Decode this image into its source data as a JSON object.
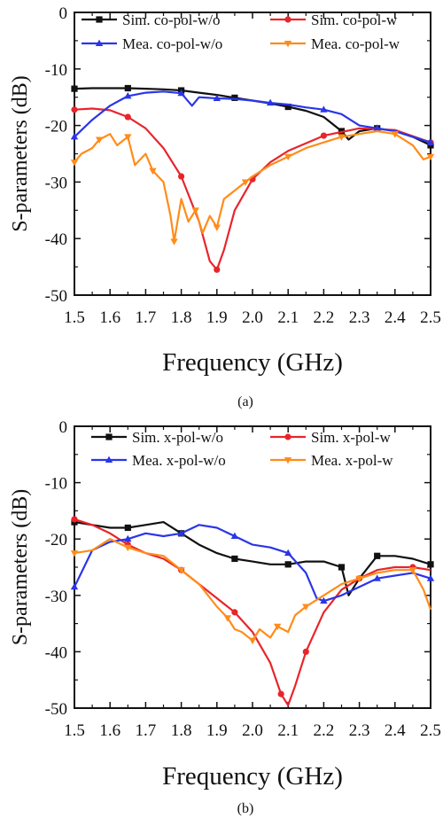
{
  "chart_data": [
    {
      "type": "line",
      "panel_label": "(a)",
      "xlabel": "Frequency (GHz)",
      "ylabel": "S-parameters (dB)",
      "xlim": [
        1.5,
        2.5
      ],
      "ylim": [
        -50,
        0
      ],
      "xticks": [
        "1.5",
        "1.6",
        "1.7",
        "1.8",
        "1.9",
        "2.0",
        "2.1",
        "2.2",
        "2.3",
        "2.4",
        "2.5"
      ],
      "yticks": [
        "0",
        "-10",
        "-20",
        "-30",
        "-40",
        "-50"
      ],
      "grid": false,
      "legend": "top, two columns",
      "series": [
        {
          "name": "Sim. co-pol-w/o",
          "color": "#111111",
          "marker": "square",
          "x": [
            1.5,
            1.55,
            1.6,
            1.65,
            1.7,
            1.75,
            1.8,
            1.85,
            1.9,
            1.95,
            2.0,
            2.05,
            2.1,
            2.15,
            2.2,
            2.25,
            2.27,
            2.3,
            2.35,
            2.4,
            2.45,
            2.5
          ],
          "y": [
            -13.5,
            -13.4,
            -13.4,
            -13.4,
            -13.5,
            -13.6,
            -13.8,
            -14.2,
            -14.6,
            -15.1,
            -15.6,
            -16.1,
            -16.7,
            -17.4,
            -18.5,
            -21.0,
            -22.5,
            -21.0,
            -20.5,
            -21.0,
            -22.0,
            -23.5
          ]
        },
        {
          "name": "Sim. co-pol-w",
          "color": "#e8252b",
          "marker": "circle",
          "x": [
            1.5,
            1.55,
            1.6,
            1.65,
            1.7,
            1.75,
            1.8,
            1.85,
            1.88,
            1.9,
            1.92,
            1.95,
            2.0,
            2.05,
            2.1,
            2.2,
            2.3,
            2.4,
            2.5
          ],
          "y": [
            -17.2,
            -17.0,
            -17.3,
            -18.5,
            -20.5,
            -24.0,
            -29.0,
            -37.0,
            -44.0,
            -45.5,
            -42.0,
            -35.0,
            -29.5,
            -26.5,
            -24.5,
            -21.8,
            -20.5,
            -20.8,
            -23.0
          ]
        },
        {
          "name": "Mea. co-pol-w/o",
          "color": "#2a35e8",
          "marker": "triangle",
          "x": [
            1.5,
            1.55,
            1.6,
            1.65,
            1.7,
            1.75,
            1.8,
            1.83,
            1.85,
            1.9,
            1.95,
            2.0,
            2.05,
            2.1,
            2.15,
            2.2,
            2.25,
            2.3,
            2.35,
            2.4,
            2.45,
            2.5
          ],
          "y": [
            -22.0,
            -19.0,
            -16.5,
            -14.8,
            -14.2,
            -14.0,
            -14.3,
            -16.5,
            -15.0,
            -15.2,
            -15.3,
            -15.6,
            -16.0,
            -16.3,
            -16.8,
            -17.2,
            -18.0,
            -20.0,
            -20.5,
            -21.0,
            -22.0,
            -23.0
          ]
        },
        {
          "name": "Mea. co-pol-w",
          "color": "#ff8c1a",
          "marker": "triangle-down",
          "x": [
            1.5,
            1.52,
            1.55,
            1.57,
            1.6,
            1.62,
            1.65,
            1.67,
            1.7,
            1.72,
            1.75,
            1.77,
            1.78,
            1.8,
            1.82,
            1.84,
            1.86,
            1.88,
            1.9,
            1.92,
            1.95,
            1.98,
            2.0,
            2.05,
            2.1,
            2.15,
            2.2,
            2.25,
            2.3,
            2.35,
            2.4,
            2.45,
            2.48,
            2.5
          ],
          "y": [
            -26.5,
            -25.0,
            -24.0,
            -22.5,
            -21.5,
            -23.5,
            -22.0,
            -27.0,
            -25.0,
            -28.0,
            -30.0,
            -36.0,
            -40.5,
            -33.0,
            -37.0,
            -35.0,
            -39.0,
            -36.0,
            -38.0,
            -33.0,
            -31.5,
            -30.0,
            -29.0,
            -27.0,
            -25.5,
            -24.0,
            -23.0,
            -22.0,
            -21.5,
            -21.0,
            -21.5,
            -23.5,
            -26.0,
            -25.5
          ]
        }
      ]
    },
    {
      "type": "line",
      "panel_label": "(b)",
      "xlabel": "Frequency (GHz)",
      "ylabel": "S-parameters (dB)",
      "xlim": [
        1.5,
        2.5
      ],
      "ylim": [
        -50,
        0
      ],
      "xticks": [
        "1.5",
        "1.6",
        "1.7",
        "1.8",
        "1.9",
        "2.0",
        "2.1",
        "2.2",
        "2.3",
        "2.4",
        "2.5"
      ],
      "yticks": [
        "0",
        "-10",
        "-20",
        "-30",
        "-40",
        "-50"
      ],
      "grid": false,
      "legend": "top, two columns",
      "series": [
        {
          "name": "Sim. x-pol-w/o",
          "color": "#111111",
          "marker": "square",
          "x": [
            1.5,
            1.55,
            1.6,
            1.65,
            1.7,
            1.75,
            1.8,
            1.85,
            1.9,
            1.95,
            2.0,
            2.05,
            2.1,
            2.15,
            2.2,
            2.25,
            2.27,
            2.3,
            2.35,
            2.4,
            2.45,
            2.5
          ],
          "y": [
            -17.0,
            -17.5,
            -18.0,
            -18.0,
            -17.5,
            -17.0,
            -19.0,
            -21.0,
            -22.5,
            -23.5,
            -24.0,
            -24.5,
            -24.5,
            -24.0,
            -24.0,
            -25.0,
            -30.0,
            -27.0,
            -23.0,
            -23.0,
            -23.5,
            -24.5
          ]
        },
        {
          "name": "Sim. x-pol-w",
          "color": "#e8252b",
          "marker": "circle",
          "x": [
            1.5,
            1.55,
            1.6,
            1.65,
            1.7,
            1.75,
            1.8,
            1.85,
            1.9,
            1.95,
            2.0,
            2.05,
            2.08,
            2.1,
            2.12,
            2.15,
            2.2,
            2.25,
            2.3,
            2.35,
            2.4,
            2.45,
            2.5
          ],
          "y": [
            -16.5,
            -17.5,
            -19.0,
            -21.0,
            -22.5,
            -23.5,
            -25.5,
            -28.0,
            -30.5,
            -33.0,
            -36.5,
            -42.0,
            -47.5,
            -49.5,
            -46.0,
            -40.0,
            -33.0,
            -29.0,
            -27.0,
            -25.5,
            -25.0,
            -25.0,
            -25.5
          ]
        },
        {
          "name": "Mea. x-pol-w/o",
          "color": "#2a35e8",
          "marker": "triangle",
          "x": [
            1.5,
            1.55,
            1.6,
            1.65,
            1.7,
            1.75,
            1.8,
            1.85,
            1.9,
            1.95,
            2.0,
            2.05,
            2.1,
            2.15,
            2.18,
            2.2,
            2.25,
            2.3,
            2.35,
            2.4,
            2.45,
            2.5
          ],
          "y": [
            -28.5,
            -22.0,
            -20.5,
            -20.0,
            -19.0,
            -19.5,
            -19.0,
            -17.5,
            -18.0,
            -19.5,
            -21.0,
            -21.5,
            -22.5,
            -26.0,
            -30.5,
            -31.0,
            -30.0,
            -28.5,
            -27.0,
            -26.5,
            -26.0,
            -27.0
          ]
        },
        {
          "name": "Mea. x-pol-w",
          "color": "#ff8c1a",
          "marker": "triangle-down",
          "x": [
            1.5,
            1.55,
            1.6,
            1.65,
            1.7,
            1.75,
            1.8,
            1.85,
            1.9,
            1.93,
            1.95,
            1.97,
            2.0,
            2.02,
            2.05,
            2.07,
            2.1,
            2.12,
            2.15,
            2.2,
            2.25,
            2.3,
            2.35,
            2.4,
            2.45,
            2.48,
            2.5
          ],
          "y": [
            -22.5,
            -22.0,
            -20.0,
            -21.5,
            -22.5,
            -23.0,
            -25.5,
            -28.0,
            -32.0,
            -34.0,
            -36.0,
            -36.5,
            -38.0,
            -36.0,
            -37.5,
            -35.5,
            -36.5,
            -33.5,
            -32.0,
            -30.0,
            -28.0,
            -27.0,
            -26.0,
            -25.5,
            -25.5,
            -29.0,
            -32.5
          ]
        }
      ]
    }
  ]
}
